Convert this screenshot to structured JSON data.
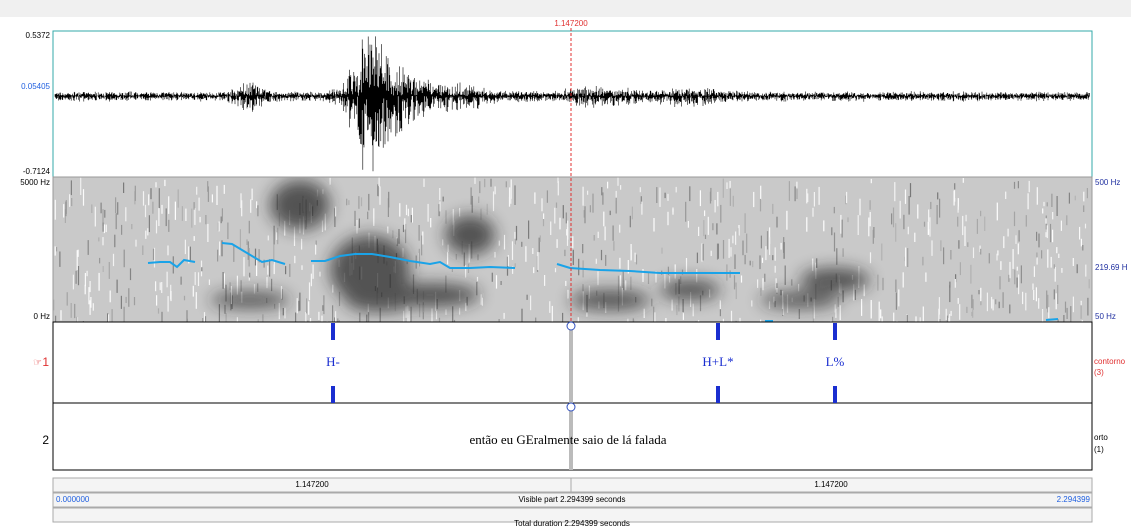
{
  "cursor_time": "1.147200",
  "waveform": {
    "max": "0.5372",
    "mid": "0.05405",
    "min": "-0.7124"
  },
  "spectrogram": {
    "left_top": "5000 Hz",
    "left_bottom": "0 Hz",
    "right_top": "500 Hz",
    "right_mid": "219.69 H",
    "right_bottom": "50 Hz"
  },
  "tiers": [
    {
      "number": "1",
      "name": "contorno",
      "count": "(3)",
      "points": [
        "H-",
        "H+L*",
        "L%"
      ]
    },
    {
      "number": "2",
      "name": "orto",
      "count": "(1)",
      "text": "então eu GEralmente saio de lá falada"
    }
  ],
  "footer": {
    "left_part": "1.147200",
    "right_part": "1.147200",
    "start": "0.000000",
    "visible": "Visible part 2.294399 seconds",
    "end": "2.294399",
    "total": "Total duration 2.294399 seconds"
  }
}
